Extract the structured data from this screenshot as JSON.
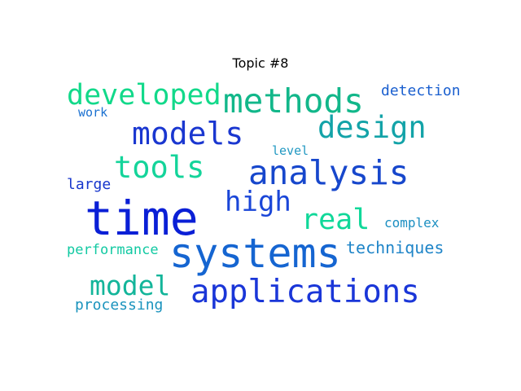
{
  "chart_data": {
    "type": "wordcloud",
    "title": "Topic #8",
    "words": [
      {
        "text": "time",
        "weight": 1.0,
        "color": "#0a1fd6"
      },
      {
        "text": "systems",
        "weight": 0.9,
        "color": "#1565d1"
      },
      {
        "text": "applications",
        "weight": 0.72,
        "color": "#1a36d8"
      },
      {
        "text": "analysis",
        "weight": 0.72,
        "color": "#1747cc"
      },
      {
        "text": "methods",
        "weight": 0.72,
        "color": "#12b78a"
      },
      {
        "text": "models",
        "weight": 0.66,
        "color": "#1a37d0"
      },
      {
        "text": "design",
        "weight": 0.62,
        "color": "#13a3a8"
      },
      {
        "text": "developed",
        "weight": 0.56,
        "color": "#12d98a"
      },
      {
        "text": "tools",
        "weight": 0.62,
        "color": "#14d49a"
      },
      {
        "text": "high",
        "weight": 0.56,
        "color": "#1a46d8"
      },
      {
        "text": "real",
        "weight": 0.56,
        "color": "#10d899"
      },
      {
        "text": "model",
        "weight": 0.52,
        "color": "#13b59a"
      },
      {
        "text": "detection",
        "weight": 0.28,
        "color": "#1a5fcf"
      },
      {
        "text": "techniques",
        "weight": 0.34,
        "color": "#1f85c8"
      },
      {
        "text": "performance",
        "weight": 0.28,
        "color": "#11c9a2"
      },
      {
        "text": "processing",
        "weight": 0.3,
        "color": "#1a93bd"
      },
      {
        "text": "large",
        "weight": 0.28,
        "color": "#1736cc"
      },
      {
        "text": "complex",
        "weight": 0.26,
        "color": "#1c8fc2"
      },
      {
        "text": "work",
        "weight": 0.24,
        "color": "#1a70d0"
      },
      {
        "text": "level",
        "weight": 0.24,
        "color": "#2198c2"
      }
    ]
  }
}
